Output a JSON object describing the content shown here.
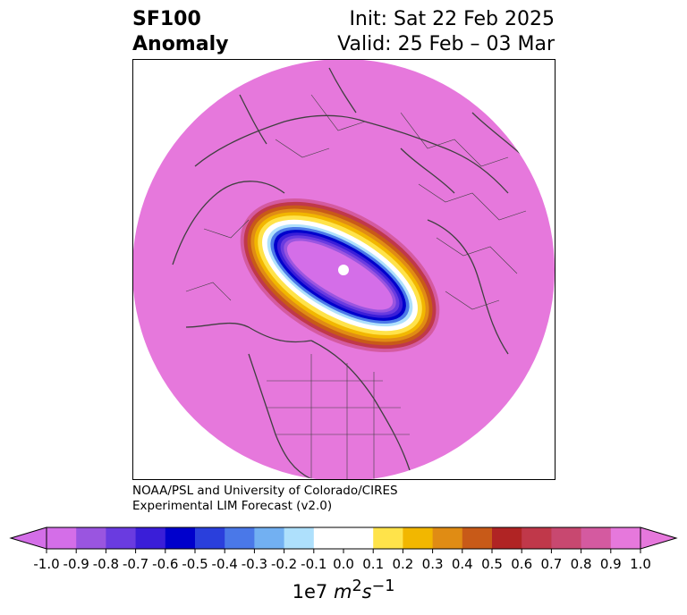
{
  "header": {
    "variable": "SF100",
    "field": "Anomaly",
    "init": "Init: Sat 22 Feb 2025",
    "valid": "Valid: 25 Feb – 03 Mar"
  },
  "credits": {
    "line1": "NOAA/PSL and University of Colorado/CIRES",
    "line2": "Experimental LIM Forecast (v2.0)"
  },
  "colorbar": {
    "ticks": [
      "-1.0",
      "-0.9",
      "-0.8",
      "-0.7",
      "-0.6",
      "-0.5",
      "-0.4",
      "-0.3",
      "-0.2",
      "-0.1",
      "0.0",
      "0.1",
      "0.2",
      "0.3",
      "0.4",
      "0.5",
      "0.6",
      "0.7",
      "0.8",
      "0.9",
      "1.0"
    ],
    "colors": [
      "#d46ee8",
      "#9a55e0",
      "#6a3be0",
      "#3a1ed8",
      "#0000cc",
      "#2a3fdc",
      "#4a78e8",
      "#72b0f2",
      "#aee0fc",
      "#ffffff",
      "#ffffff",
      "#ffe34a",
      "#f2b700",
      "#e08c14",
      "#c85a18",
      "#b02424",
      "#c0384a",
      "#c84870",
      "#d45aa0",
      "#e678dc"
    ],
    "units_prefix": "1e7",
    "units_var": "m",
    "units_exp1": "2",
    "units_var2": "s",
    "units_exp2": "−1"
  },
  "map": {
    "projection": "north polar stereographic",
    "background_color": "#e678dc",
    "coastline_color": "#404040",
    "anomaly_center": "vortex over Arctic (negative)",
    "ring_colors": [
      "#d46ee8",
      "#9a55e0",
      "#3a1ed8",
      "#2a3fdc",
      "#72b0f2",
      "#ffffff",
      "#ffe34a",
      "#e08c14",
      "#b02424",
      "#c84870"
    ]
  }
}
